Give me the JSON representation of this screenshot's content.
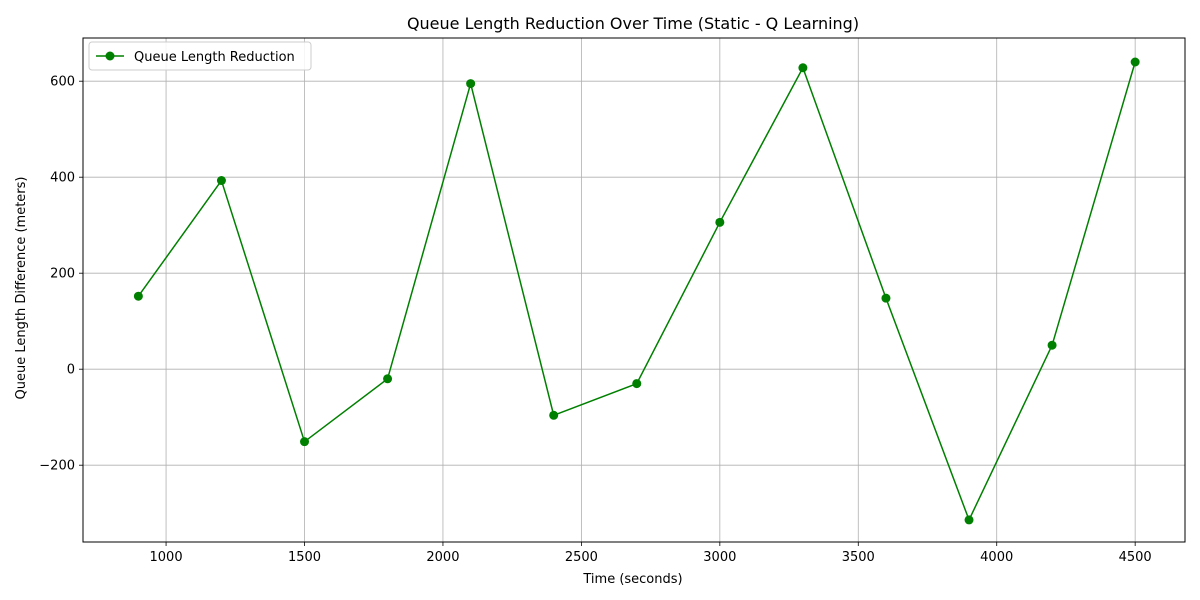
{
  "chart_data": {
    "type": "line",
    "title": "Queue Length Reduction Over Time (Static - Q Learning)",
    "xlabel": "Time (seconds)",
    "ylabel": "Queue Length Difference (meters)",
    "xlim": [
      700,
      4680
    ],
    "ylim": [
      -360,
      690
    ],
    "x_ticks": [
      1000,
      1500,
      2000,
      2500,
      3000,
      3500,
      4000,
      4500
    ],
    "x_tick_labels": [
      "1000",
      "1500",
      "2000",
      "2500",
      "3000",
      "3500",
      "4000",
      "4500"
    ],
    "y_ticks": [
      -200,
      0,
      200,
      400,
      600
    ],
    "y_tick_labels": [
      "−200",
      "0",
      "200",
      "400",
      "600"
    ],
    "grid": true,
    "legend_position": "top-left",
    "series": [
      {
        "name": "Queue Length Reduction",
        "color": "#008000",
        "marker": "circle",
        "x": [
          900,
          1200,
          1500,
          1800,
          2100,
          2400,
          2700,
          3000,
          3300,
          3600,
          3900,
          4200,
          4500
        ],
        "y": [
          152,
          393,
          -151,
          -20,
          595,
          -96,
          -30,
          306,
          628,
          148,
          -314,
          50,
          640
        ]
      }
    ]
  }
}
